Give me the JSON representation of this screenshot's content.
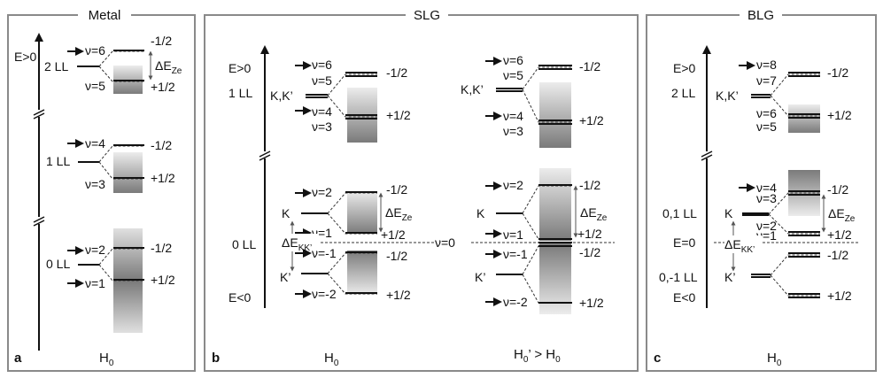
{
  "panels": {
    "metal": {
      "title": "Metal",
      "letter": "a",
      "hamiltonian": "H",
      "ham_sub": "0",
      "energy_label": "E>0",
      "ll": [
        "2 LL",
        "1 LL",
        "0 LL"
      ],
      "nu": [
        "ν=6",
        "ν=5",
        "ν=4",
        "ν=3",
        "ν=2",
        "ν=1"
      ],
      "spins": [
        "-1/2",
        "+1/2",
        "-1/2",
        "+1/2",
        "-1/2",
        "+1/2"
      ],
      "zeeman": {
        "delta": "ΔE",
        "sub": "Ze"
      }
    },
    "slg": {
      "title": "SLG",
      "letter": "b",
      "left": {
        "hamiltonian": "H",
        "ham_sub": "0",
        "energy_top": "E>0",
        "energy_bottom": "E<0",
        "ll_upper": "1 LL",
        "ll_lower": "0 LL",
        "valley_upper": "K,K’",
        "valley_k": "K",
        "valley_kp": "K’",
        "nu": [
          "ν=6",
          "ν=5",
          "ν=4",
          "ν=3",
          "ν=2",
          "ν=1",
          "ν=-1",
          "ν=-2"
        ],
        "spins": [
          "-1/2",
          "+1/2",
          "-1/2",
          "+1/2",
          "-1/2",
          "+1/2"
        ],
        "zeeman": {
          "delta": "ΔE",
          "sub": "Ze"
        },
        "valley_split": {
          "delta": "ΔE",
          "sub": "KK’"
        }
      },
      "right": {
        "hamiltonian": "H",
        "ham_sub": "0",
        "ham_tail": "’ > H",
        "ham_tail_sub": "0",
        "valley_upper": "K,K’",
        "valley_k": "K",
        "valley_kp": "K’",
        "nu": [
          "ν=6",
          "ν=5",
          "ν=4",
          "ν=3",
          "ν=2",
          "ν=1",
          "ν=-1",
          "ν=-2"
        ],
        "spins": [
          "-1/2",
          "+1/2",
          "-1/2",
          "+1/2",
          "-1/2",
          "+1/2"
        ],
        "zeeman": {
          "delta": "ΔE",
          "sub": "Ze"
        }
      },
      "nu_zero": "ν=0"
    },
    "blg": {
      "title": "BLG",
      "letter": "c",
      "hamiltonian": "H",
      "ham_sub": "0",
      "energy_top": "E>0",
      "energy_zero": "E=0",
      "energy_bottom": "E<0",
      "ll": [
        "2 LL",
        "0,1 LL",
        "0,-1 LL"
      ],
      "valley_upper": "K,K’",
      "valley_k": "K",
      "valley_kp": "K’",
      "nu": [
        "ν=8",
        "ν=7",
        "ν=6",
        "ν=5",
        "ν=4",
        "ν=3",
        "ν=2",
        "ν=1"
      ],
      "spins": [
        "-1/2",
        "+1/2",
        "-1/2",
        "+1/2",
        "-1/2",
        "+1/2"
      ],
      "zeeman": {
        "delta": "ΔE",
        "sub": "Ze"
      },
      "valley_split": {
        "delta": "ΔE",
        "sub": "KK’"
      }
    }
  }
}
